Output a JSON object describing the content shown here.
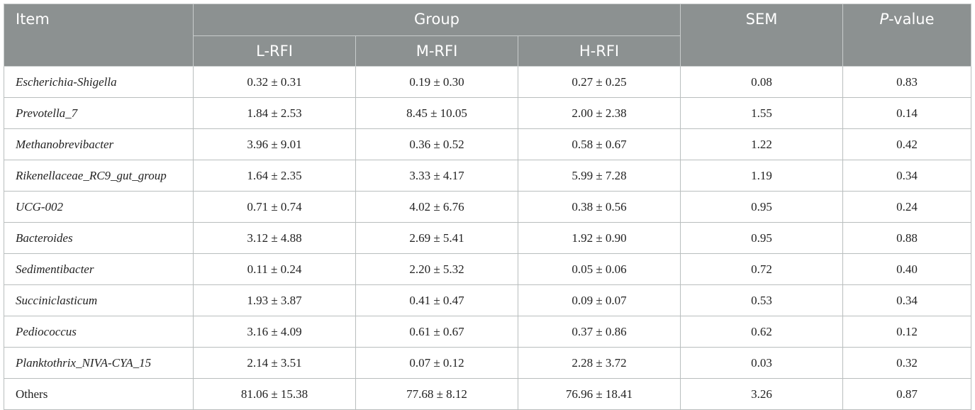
{
  "header": {
    "item": "Item",
    "group": "Group",
    "sem": "SEM",
    "p_value_italic": "P",
    "p_value_rest": "-value",
    "subgroups": [
      "L-RFI",
      "M-RFI",
      "H-RFI"
    ]
  },
  "rows": [
    {
      "name": "Escherichia-Shigella",
      "l": "0.32 ± 0.31",
      "m": "0.19 ± 0.30",
      "h": "0.27 ± 0.25",
      "sem": "0.08",
      "p": "0.83"
    },
    {
      "name": "Prevotella_7",
      "l": "1.84 ± 2.53",
      "m": "8.45 ± 10.05",
      "h": "2.00 ± 2.38",
      "sem": "1.55",
      "p": "0.14"
    },
    {
      "name": "Methanobrevibacter",
      "l": "3.96 ± 9.01",
      "m": "0.36 ± 0.52",
      "h": "0.58 ± 0.67",
      "sem": "1.22",
      "p": "0.42"
    },
    {
      "name": "Rikenellaceae_RC9_gut_group",
      "l": "1.64 ± 2.35",
      "m": "3.33 ± 4.17",
      "h": "5.99 ± 7.28",
      "sem": "1.19",
      "p": "0.34"
    },
    {
      "name": "UCG-002",
      "l": "0.71 ± 0.74",
      "m": "4.02 ± 6.76",
      "h": "0.38 ± 0.56",
      "sem": "0.95",
      "p": "0.24"
    },
    {
      "name": "Bacteroides",
      "l": "3.12 ± 4.88",
      "m": "2.69 ± 5.41",
      "h": "1.92 ± 0.90",
      "sem": "0.95",
      "p": "0.88"
    },
    {
      "name": "Sedimentibacter",
      "l": "0.11 ± 0.24",
      "m": "2.20 ± 5.32",
      "h": "0.05 ± 0.06",
      "sem": "0.72",
      "p": "0.40"
    },
    {
      "name": "Succiniclasticum",
      "l": "1.93 ± 3.87",
      "m": "0.41 ± 0.47",
      "h": "0.09 ± 0.07",
      "sem": "0.53",
      "p": "0.34"
    },
    {
      "name": "Pediococcus",
      "l": "3.16 ± 4.09",
      "m": "0.61 ± 0.67",
      "h": "0.37 ± 0.86",
      "sem": "0.62",
      "p": "0.12"
    },
    {
      "name": "Planktothrix_NIVA-CYA_15",
      "l": "2.14 ± 3.51",
      "m": "0.07 ± 0.12",
      "h": "2.28 ± 3.72",
      "sem": "0.03",
      "p": "0.32"
    },
    {
      "name": "Others",
      "l": "81.06 ± 15.38",
      "m": "77.68 ± 8.12",
      "h": "76.96 ± 18.41",
      "sem": "3.26",
      "p": "0.87"
    }
  ]
}
